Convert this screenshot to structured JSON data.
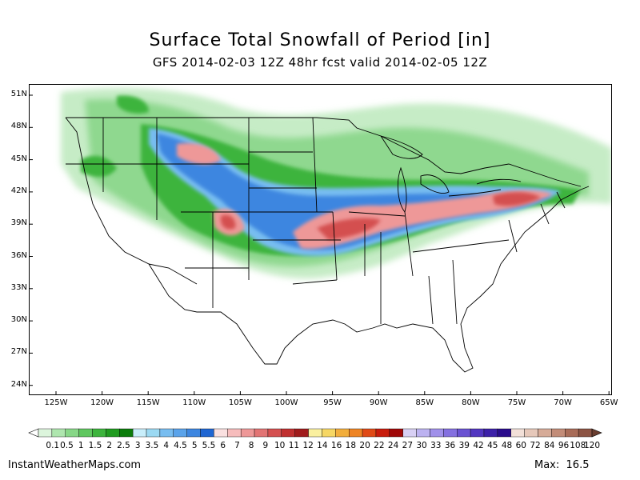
{
  "title": "Surface Total Snowfall of Period [in]",
  "subtitle": "GFS 2014-02-03 12Z 48hr fcst valid 2014-02-05 12Z",
  "map": {
    "lat_labels": [
      "51N",
      "48N",
      "45N",
      "42N",
      "39N",
      "36N",
      "33N",
      "30N",
      "27N",
      "24N"
    ],
    "lon_labels": [
      "125W",
      "120W",
      "115W",
      "110W",
      "105W",
      "100W",
      "95W",
      "90W",
      "85W",
      "80W",
      "75W",
      "70W",
      "65W"
    ]
  },
  "colorbar": {
    "levels": [
      "0.1",
      "0.5",
      "1",
      "1.5",
      "2",
      "2.5",
      "3",
      "3.5",
      "4",
      "4.5",
      "5",
      "5.5",
      "6",
      "7",
      "8",
      "9",
      "10",
      "11",
      "12",
      "14",
      "16",
      "18",
      "20",
      "22",
      "24",
      "27",
      "30",
      "33",
      "36",
      "39",
      "42",
      "45",
      "48",
      "60",
      "72",
      "84",
      "96",
      "108",
      "120"
    ],
    "colors": [
      "#dcf5dc",
      "#aee6ae",
      "#87d787",
      "#5fc75f",
      "#3cb43c",
      "#1f9b1f",
      "#0c7d0c",
      "#c8eefa",
      "#9bd9f2",
      "#78bdf0",
      "#5aa3ea",
      "#3d86e0",
      "#1f66d2",
      "#fae0e0",
      "#f6bcbc",
      "#ee9898",
      "#e27474",
      "#d45050",
      "#c03030",
      "#a01c1c",
      "#faf0a0",
      "#f6d764",
      "#f2ae3c",
      "#ee8424",
      "#e04a16",
      "#c81c0c",
      "#a00808",
      "#d8d0f4",
      "#bcb2f0",
      "#a090ea",
      "#8470e0",
      "#6a52d2",
      "#5236c0",
      "#3c20a8",
      "#2a0c8c",
      "#f2e0d8",
      "#e6c8ba",
      "#d6ab98",
      "#c28c78",
      "#a86c58",
      "#8c5444"
    ]
  },
  "footer": {
    "credit": "InstantWeatherMaps.com",
    "max_label": "Max:",
    "max_value": "16.5"
  }
}
